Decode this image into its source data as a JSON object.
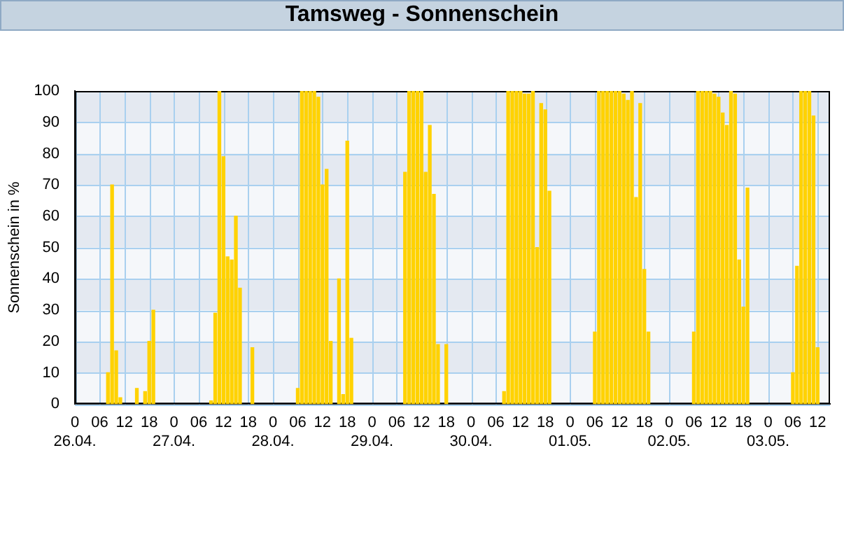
{
  "chart_data": {
    "type": "bar",
    "title": "Tamsweg - Sonnenschein",
    "ylabel": "Sonnenschein in %",
    "x": [
      "--04-26T08:00",
      "--04-26T09:00",
      "--04-26T10:00",
      "--04-26T11:00",
      "--04-26T15:00",
      "--04-26T17:00",
      "--04-26T18:00",
      "--04-26T19:00",
      "--04-27T09:00",
      "--04-27T10:00",
      "--04-27T11:00",
      "--04-27T12:00",
      "--04-27T13:00",
      "--04-27T14:00",
      "--04-27T15:00",
      "--04-27T16:00",
      "--04-27T19:00",
      "--04-28T06:00",
      "--04-28T07:00",
      "--04-28T08:00",
      "--04-28T09:00",
      "--04-28T10:00",
      "--04-28T11:00",
      "--04-28T12:00",
      "--04-28T13:00",
      "--04-28T14:00",
      "--04-28T16:00",
      "--04-28T17:00",
      "--04-28T18:00",
      "--04-28T19:00",
      "--04-29T08:00",
      "--04-29T09:00",
      "--04-29T10:00",
      "--04-29T11:00",
      "--04-29T12:00",
      "--04-29T13:00",
      "--04-29T14:00",
      "--04-29T15:00",
      "--04-29T16:00",
      "--04-29T18:00",
      "--04-30T08:00",
      "--04-30T09:00",
      "--04-30T10:00",
      "--04-30T11:00",
      "--04-30T12:00",
      "--04-30T13:00",
      "--04-30T14:00",
      "--04-30T15:00",
      "--04-30T16:00",
      "--04-30T17:00",
      "--04-30T18:00",
      "--04-30T19:00",
      "--05-01T06:00",
      "--05-01T07:00",
      "--05-01T08:00",
      "--05-01T09:00",
      "--05-01T10:00",
      "--05-01T11:00",
      "--05-01T12:00",
      "--05-01T13:00",
      "--05-01T14:00",
      "--05-01T15:00",
      "--05-01T16:00",
      "--05-01T17:00",
      "--05-01T18:00",
      "--05-01T19:00",
      "--05-02T06:00",
      "--05-02T07:00",
      "--05-02T08:00",
      "--05-02T09:00",
      "--05-02T10:00",
      "--05-02T11:00",
      "--05-02T12:00",
      "--05-02T13:00",
      "--05-02T14:00",
      "--05-02T15:00",
      "--05-02T16:00",
      "--05-02T17:00",
      "--05-02T18:00",
      "--05-02T19:00",
      "--05-03T06:00",
      "--05-03T07:00",
      "--05-03T08:00",
      "--05-03T09:00",
      "--05-03T10:00",
      "--05-03T11:00",
      "--05-03T12:00"
    ],
    "values": [
      10,
      70,
      17,
      2,
      5,
      4,
      20,
      30,
      1,
      29,
      100,
      79,
      47,
      46,
      60,
      37,
      18,
      5,
      100,
      100,
      100,
      100,
      98,
      70,
      75,
      20,
      40,
      3,
      84,
      21,
      74,
      100,
      100,
      100,
      100,
      74,
      89,
      67,
      19,
      19,
      4,
      100,
      100,
      100,
      100,
      99,
      99,
      100,
      50,
      96,
      94,
      68,
      23,
      100,
      100,
      100,
      100,
      100,
      100,
      99,
      97,
      100,
      66,
      96,
      43,
      23,
      23,
      100,
      100,
      100,
      100,
      99,
      98,
      93,
      89,
      100,
      99,
      46,
      31,
      69,
      10,
      44,
      100,
      100,
      100,
      92,
      18
    ],
    "color": "#ffd200",
    "xlim": [
      "--04-26T00:00",
      "--05-03T15:00"
    ],
    "xticks": [
      {
        "value": "--04-26T00:00",
        "label": "0\n26.04."
      },
      {
        "value": "--04-26T06:00",
        "label": "06"
      },
      {
        "value": "--04-26T12:00",
        "label": "12"
      },
      {
        "value": "--04-26T18:00",
        "label": "18"
      },
      {
        "value": "--04-27T00:00",
        "label": "0\n27.04."
      },
      {
        "value": "--04-27T06:00",
        "label": "06"
      },
      {
        "value": "--04-27T12:00",
        "label": "12"
      },
      {
        "value": "--04-27T18:00",
        "label": "18"
      },
      {
        "value": "--04-28T00:00",
        "label": "0\n28.04."
      },
      {
        "value": "--04-28T06:00",
        "label": "06"
      },
      {
        "value": "--04-28T12:00",
        "label": "12"
      },
      {
        "value": "--04-28T18:00",
        "label": "18"
      },
      {
        "value": "--04-29T00:00",
        "label": "0\n29.04."
      },
      {
        "value": "--04-29T06:00",
        "label": "06"
      },
      {
        "value": "--04-29T12:00",
        "label": "12"
      },
      {
        "value": "--04-29T18:00",
        "label": "18"
      },
      {
        "value": "--04-30T00:00",
        "label": "0\n30.04."
      },
      {
        "value": "--04-30T06:00",
        "label": "06"
      },
      {
        "value": "--04-30T12:00",
        "label": "12"
      },
      {
        "value": "--04-30T18:00",
        "label": "18"
      },
      {
        "value": "--05-01T00:00",
        "label": "0\n01.05."
      },
      {
        "value": "--05-01T06:00",
        "label": "06"
      },
      {
        "value": "--05-01T12:00",
        "label": "12"
      },
      {
        "value": "--05-01T18:00",
        "label": "18"
      },
      {
        "value": "--05-02T00:00",
        "label": "0\n02.05."
      },
      {
        "value": "--05-02T06:00",
        "label": "06"
      },
      {
        "value": "--05-02T12:00",
        "label": "12"
      },
      {
        "value": "--05-02T18:00",
        "label": "18"
      },
      {
        "value": "--05-03T00:00",
        "label": "0\n03.05."
      },
      {
        "value": "--05-03T06:00",
        "label": "06"
      },
      {
        "value": "--05-03T12:00",
        "label": "12"
      }
    ],
    "ylim": [
      0,
      100
    ],
    "yticks": [
      0,
      10,
      20,
      30,
      40,
      50,
      60,
      70,
      80,
      90,
      100
    ],
    "grid": true
  }
}
